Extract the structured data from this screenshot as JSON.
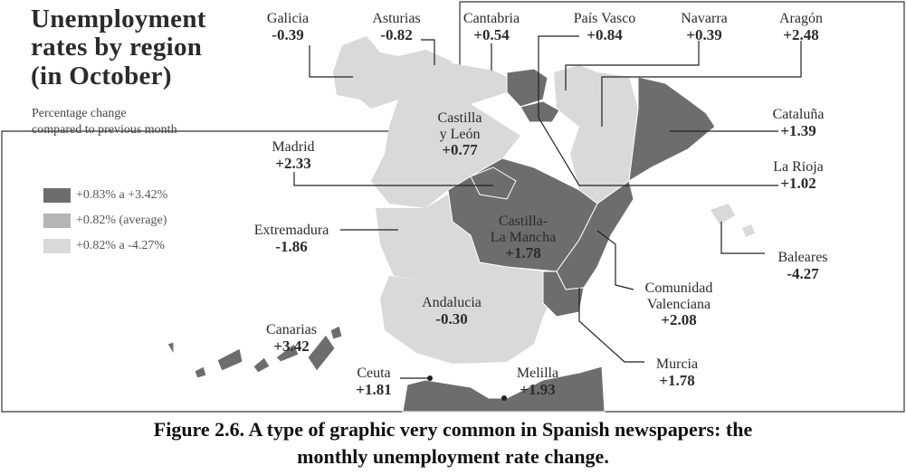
{
  "title_lines": [
    "Unemployment",
    "rates by region",
    "(in October)"
  ],
  "subtitle_lines": [
    "Percentage change",
    "compared to previous month"
  ],
  "legend": [
    {
      "label": "+0.83% a +3.42%",
      "color": "#6d6d6d"
    },
    {
      "label": "+0.82% (average)",
      "color": "#b5b5b5"
    },
    {
      "label": "+0.82% a -4.27%",
      "color": "#d9d9d9"
    }
  ],
  "regions": {
    "galicia": {
      "name": "Galicia",
      "value": "-0.39"
    },
    "asturias": {
      "name": "Asturias",
      "value": "-0.82"
    },
    "cantabria": {
      "name": "Cantabria",
      "value": "+0.54"
    },
    "pais_vasco": {
      "name": "País Vasco",
      "value": "+0.84"
    },
    "navarra": {
      "name": "Navarra",
      "value": "+0.39"
    },
    "aragon": {
      "name": "Aragón",
      "value": "+2.48"
    },
    "cataluna": {
      "name": "Cataluña",
      "value": "+1.39"
    },
    "castilla_leon": {
      "name": [
        "Castilla",
        "y León"
      ],
      "value": "+0.77"
    },
    "la_rioja": {
      "name": "La Rioja",
      "value": "+1.02"
    },
    "madrid": {
      "name": "Madrid",
      "value": "+2.33"
    },
    "castilla_mancha": {
      "name": [
        "Castilla-",
        "La Mancha"
      ],
      "value": "+1.78"
    },
    "extremadura": {
      "name": "Extremadura",
      "value": "-1.86"
    },
    "baleares": {
      "name": "Baleares",
      "value": "-4.27"
    },
    "comunidad_valenciana": {
      "name": [
        "Comunidad",
        "Valenciana"
      ],
      "value": "+2.08"
    },
    "andalucia": {
      "name": "Andalucia",
      "value": "-0.30"
    },
    "canarias": {
      "name": "Canarias",
      "value": "+3.42"
    },
    "murcia": {
      "name": "Murcia",
      "value": "+1.78"
    },
    "ceuta": {
      "name": "Ceuta",
      "value": "+1.81"
    },
    "melilla": {
      "name": "Melilla",
      "value": "+1.93"
    }
  },
  "caption_lines": [
    "Figure 2.6. A type of graphic very common in Spanish newspapers: the",
    "monthly unemployment rate change."
  ]
}
